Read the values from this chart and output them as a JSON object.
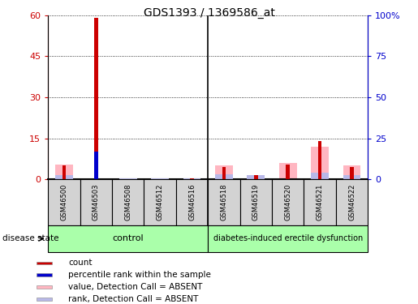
{
  "title": "GDS1393 / 1369586_at",
  "samples": [
    "GSM46500",
    "GSM46503",
    "GSM46508",
    "GSM46512",
    "GSM46516",
    "GSM46518",
    "GSM46519",
    "GSM46520",
    "GSM46521",
    "GSM46522"
  ],
  "count_values": [
    5.0,
    59.0,
    0.2,
    0.2,
    0.3,
    4.5,
    1.5,
    5.5,
    14.0,
    4.5
  ],
  "percentile_values": [
    0.0,
    17.0,
    0.0,
    0.0,
    0.0,
    0.0,
    0.0,
    0.0,
    0.0,
    0.0
  ],
  "value_absent": [
    5.5,
    0.0,
    0.0,
    0.0,
    0.0,
    5.0,
    0.0,
    6.0,
    12.0,
    5.0
  ],
  "rank_absent": [
    1.5,
    0.0,
    0.5,
    0.5,
    0.5,
    2.0,
    1.5,
    0.0,
    2.5,
    1.5
  ],
  "control_group": {
    "label": "control",
    "indices": [
      0,
      1,
      2,
      3,
      4
    ],
    "color": "#aaffaa"
  },
  "diabetes_group": {
    "label": "diabetes-induced erectile dysfunction",
    "indices": [
      5,
      6,
      7,
      8,
      9
    ],
    "color": "#aaffaa"
  },
  "ylim_left": [
    0,
    60
  ],
  "ylim_right": [
    0,
    100
  ],
  "yticks_left": [
    0,
    15,
    30,
    45,
    60
  ],
  "ytick_labels_left": [
    "0",
    "15",
    "30",
    "45",
    "60"
  ],
  "yticks_right": [
    0,
    25,
    50,
    75,
    100
  ],
  "ytick_labels_right": [
    "0",
    "25",
    "50",
    "75",
    "100%"
  ],
  "left_tick_color": "#cc0000",
  "right_tick_color": "#0000cc",
  "count_color": "#cc0000",
  "percentile_color": "#0000cc",
  "value_absent_color": "#ffb6c1",
  "rank_absent_color": "#b8b8e8",
  "sample_box_color": "#d3d3d3",
  "legend_items": [
    {
      "label": "count",
      "color": "#cc0000"
    },
    {
      "label": "percentile rank within the sample",
      "color": "#0000cc"
    },
    {
      "label": "value, Detection Call = ABSENT",
      "color": "#ffb6c1"
    },
    {
      "label": "rank, Detection Call = ABSENT",
      "color": "#b8b8e8"
    }
  ]
}
